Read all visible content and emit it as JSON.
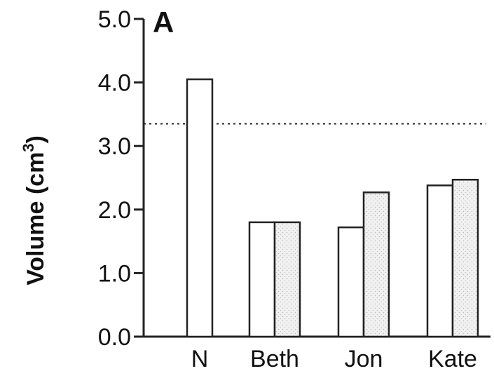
{
  "chart_data": {
    "type": "bar",
    "panel_label": "A",
    "title": "",
    "xlabel": "",
    "ylabel": "Volume (cm",
    "ylabel_superscript": "3",
    "ylabel_close": ")",
    "ylim": [
      0,
      5
    ],
    "yticks": [
      "0.0",
      "1.0",
      "2.0",
      "3.0",
      "4.0",
      "5.0"
    ],
    "categories": [
      "N",
      "Beth",
      "Jon",
      "Kate"
    ],
    "series": [
      {
        "values": [
          4.05,
          1.8,
          1.72,
          2.38
        ],
        "fill": "#ffffff"
      },
      {
        "values": [
          null,
          1.8,
          2.27,
          2.47
        ],
        "fill": "#ececec"
      }
    ],
    "reference_line": {
      "value": 3.35,
      "style": "dotted"
    },
    "grid": false
  }
}
